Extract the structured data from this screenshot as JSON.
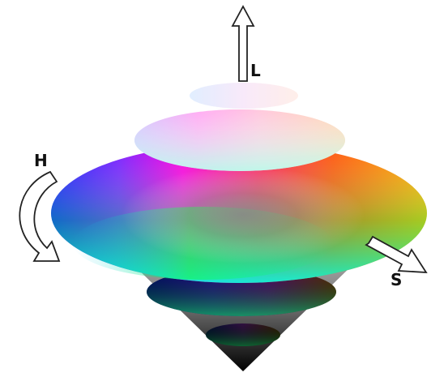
{
  "diagram": {
    "axes": {
      "lightness": {
        "label": "L"
      },
      "hue": {
        "label": "H"
      },
      "saturation": {
        "label": "S"
      }
    }
  }
}
